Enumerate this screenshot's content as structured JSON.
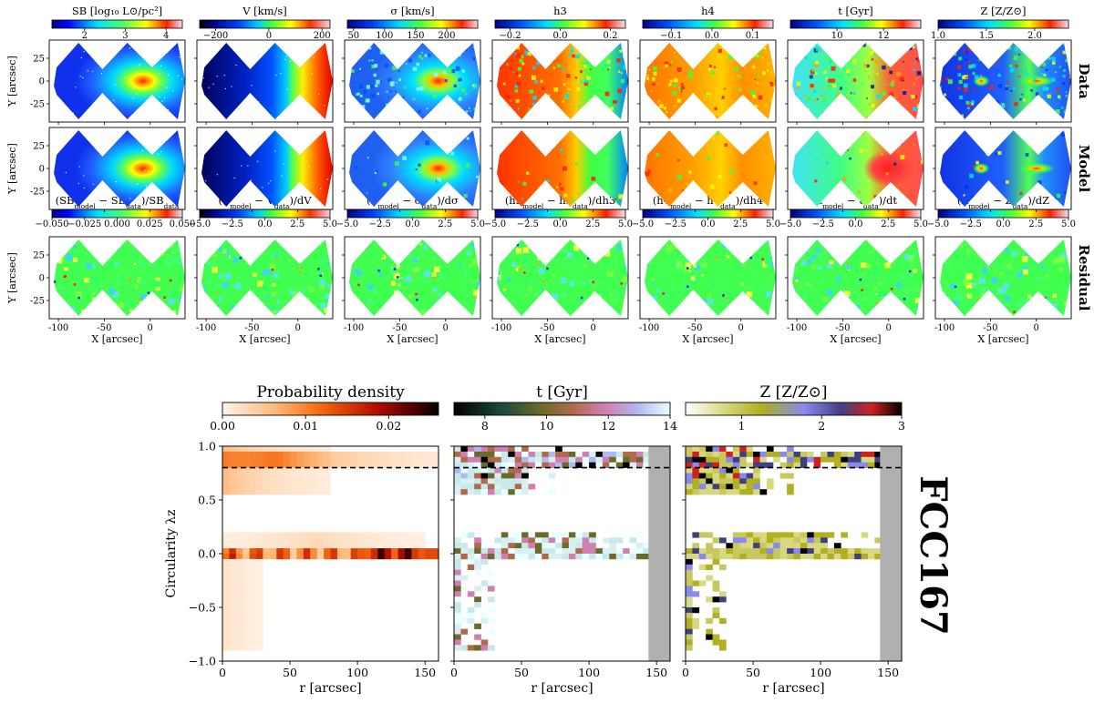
{
  "figure": {
    "galaxy_name": "FCC167",
    "row_labels": [
      "Data",
      "Model",
      "Residual"
    ]
  },
  "chart_data": [
    {
      "type": "heatmap",
      "name": "kinematic-maps",
      "xlabel": "X [arcsec]",
      "ylabel": "Y [arcsec]",
      "x_ticks": [
        "-100",
        "-50",
        "0"
      ],
      "y_ticks": [
        "25",
        "0",
        "-25"
      ],
      "xlim": [
        -110,
        38
      ],
      "ylim": [
        -45,
        45
      ],
      "columns": [
        {
          "key": "sb",
          "title": "SB [log₁₀ L⊙/pc²]",
          "residual_title": "(SB_model − SB_data)/SB_data",
          "cmap": "sb",
          "cbar_ticks": [
            "2",
            "3",
            "4"
          ],
          "cbar_range": [
            1.2,
            4.4
          ],
          "res_ticks": [
            "−0.050",
            "−0.025",
            "0.000",
            "0.025",
            "0.050"
          ]
        },
        {
          "key": "v",
          "title": "V [km/s]",
          "residual_title": "(V_model − V_data)/dV",
          "cmap": "vel",
          "cbar_ticks": [
            "−200",
            "0",
            "200"
          ],
          "cbar_range": [
            -260,
            230
          ],
          "res_ticks": [
            "−5.0",
            "−2.5",
            "0.0",
            "2.5",
            "5.0"
          ]
        },
        {
          "key": "sigma",
          "title": "σ [km/s]",
          "residual_title": "(σ_model − σ_data)/dσ",
          "cmap": "sig",
          "cbar_ticks": [
            "50",
            "100",
            "150",
            "200"
          ],
          "cbar_range": [
            40,
            250
          ],
          "res_ticks": [
            "−5.0",
            "−2.5",
            "0.0",
            "2.5",
            "5.0"
          ]
        },
        {
          "key": "h3",
          "title": "h3",
          "residual_title": "(h3_model − h3_data)/dh3",
          "cmap": "h3",
          "cbar_ticks": [
            "−0.2",
            "0.0",
            "0.2"
          ],
          "cbar_range": [
            -0.26,
            0.26
          ],
          "res_ticks": [
            "−5.0",
            "−2.5",
            "0.0",
            "2.5",
            "5.0"
          ]
        },
        {
          "key": "h4",
          "title": "h4",
          "residual_title": "(h4_model − h4_data)/dh4",
          "cmap": "h4",
          "cbar_ticks": [
            "−0.1",
            "0.0",
            "0.1"
          ],
          "cbar_range": [
            -0.17,
            0.15
          ],
          "res_ticks": [
            "−5.0",
            "−2.5",
            "0.0",
            "2.5",
            "5.0"
          ]
        },
        {
          "key": "t",
          "title": "t [Gyr]",
          "residual_title": "(t_model − t_data)/dt",
          "cmap": "age",
          "cbar_ticks": [
            "10",
            "12"
          ],
          "cbar_range": [
            8,
            13.6
          ],
          "res_ticks": [
            "−5.0",
            "−2.5",
            "0.0",
            "2.5",
            "5.0"
          ]
        },
        {
          "key": "z",
          "title": "Z [Z/Z⊙]",
          "residual_title": "(Z_model − Z_data)/dZ",
          "cmap": "met",
          "cbar_ticks": [
            "1.0",
            "1.5",
            "2.0"
          ],
          "cbar_range": [
            1.0,
            2.35
          ],
          "res_ticks": [
            "−5.0",
            "−2.5",
            "0.0",
            "2.5",
            "5.0"
          ]
        }
      ]
    },
    {
      "type": "heatmap",
      "name": "orbit-distribution",
      "xlabel": "r [arcsec]",
      "ylabel": "Circularity λz",
      "x_ticks": [
        "0",
        "50",
        "100",
        "150"
      ],
      "y_ticks": [
        "1.0",
        "0.5",
        "0.0",
        "−0.5",
        "−1.0"
      ],
      "xlim": [
        0,
        160
      ],
      "ylim": [
        -1.0,
        1.0
      ],
      "reference_line_lambda": 0.8,
      "panels": [
        {
          "key": "density",
          "title": "Probability density",
          "cmap": "prob",
          "cbar_ticks": [
            "0.00",
            "0.01",
            "0.02"
          ],
          "cbar_range": [
            0.0,
            0.026
          ]
        },
        {
          "key": "age",
          "title": "t [Gyr]",
          "cmap": "agebig",
          "cbar_ticks": [
            "8",
            "10",
            "12",
            "14"
          ],
          "cbar_range": [
            7,
            14
          ]
        },
        {
          "key": "metal",
          "title": "Z [Z/Z⊙]",
          "cmap": "metbig",
          "cbar_ticks": [
            "1",
            "2",
            "3"
          ],
          "cbar_range": [
            0.3,
            3.0
          ]
        }
      ]
    }
  ]
}
